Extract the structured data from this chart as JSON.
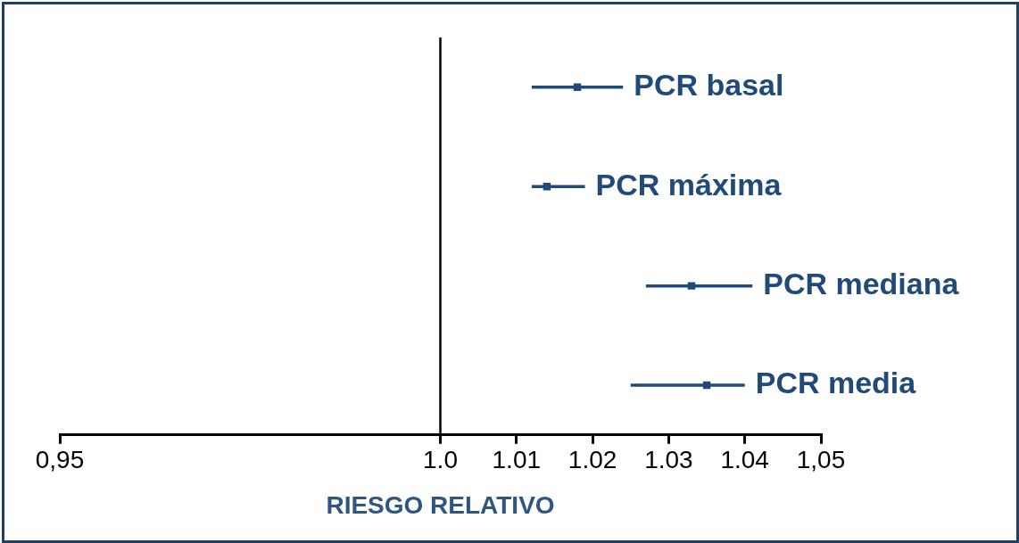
{
  "chart_data": {
    "type": "scatter",
    "orientation": "horizontal",
    "xlabel": "RIESGO RELATIVO",
    "categories": [
      "PCR basal",
      "PCR máxima",
      "PCR mediana",
      "PCR media"
    ],
    "series": [
      {
        "color": "#1f4a7a",
        "values": [
          1.018,
          1.014,
          1.033,
          1.035
        ],
        "errors": [
          [
            1.012,
            1.024
          ],
          [
            1.012,
            1.019
          ],
          [
            1.027,
            1.041
          ],
          [
            1.025,
            1.04
          ]
        ]
      }
    ],
    "xlim": [
      0.95,
      1.05
    ],
    "xticks": [
      {
        "value": 0.95,
        "label": "0,95"
      },
      {
        "value": 1.0,
        "label": "1.0"
      },
      1.01,
      1.02,
      1.03,
      1.04,
      {
        "value": 1.05,
        "label": "1,05"
      }
    ],
    "ref_lines": [
      {
        "axis": "x",
        "value": 1.0,
        "color": "#000000"
      }
    ],
    "tick_labels": "x",
    "grid": false,
    "legend": false,
    "marker": "square"
  }
}
